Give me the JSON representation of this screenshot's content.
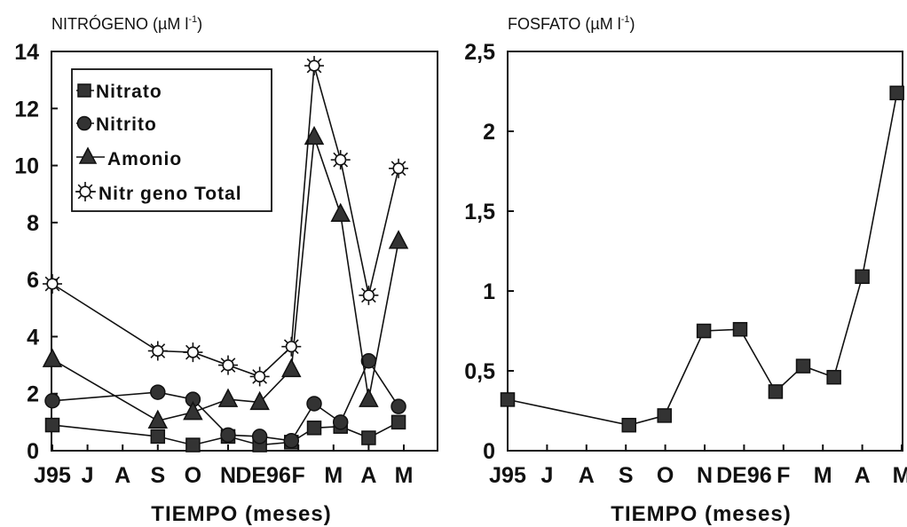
{
  "chart_data": [
    {
      "type": "line",
      "title": "NITRÓGENO (µM l",
      "title_sup": "-1",
      "title_end": ")",
      "xlabel": "TIEMPO (meses)",
      "ylabel": "",
      "x_tick_labels": [
        "J95",
        "J",
        "A",
        "S",
        "O",
        "N",
        "DE96",
        "F",
        "M",
        "A",
        "M"
      ],
      "y_tick_labels": [
        "0",
        "2",
        "4",
        "6",
        "8",
        "10",
        "12",
        "14"
      ],
      "ylim": [
        0,
        14
      ],
      "legend_position": "top-left",
      "series": [
        {
          "name": "Nitrato",
          "marker": "square",
          "x": [
            0,
            3,
            4,
            5,
            5.9,
            6.8,
            7.45,
            8.2,
            9,
            9.85
          ],
          "values": [
            0.9,
            0.5,
            0.2,
            0.5,
            0.2,
            0.3,
            0.8,
            0.85,
            0.45,
            1.0
          ]
        },
        {
          "name": "Nitrito",
          "marker": "circle",
          "x": [
            0,
            3,
            4,
            5,
            5.9,
            6.8,
            7.45,
            8.2,
            9,
            9.85
          ],
          "values": [
            1.75,
            2.05,
            1.8,
            0.55,
            0.5,
            0.35,
            1.65,
            1.0,
            3.15,
            1.55
          ]
        },
        {
          "name": "Amonio",
          "marker": "triangle",
          "x": [
            0,
            3,
            4,
            5,
            5.9,
            6.8,
            7.45,
            8.2,
            9,
            9.85
          ],
          "values": [
            3.2,
            1.05,
            1.35,
            1.8,
            1.7,
            2.85,
            11.0,
            8.3,
            1.8,
            7.35
          ]
        },
        {
          "name": "Nitr geno Total",
          "marker": "sun",
          "x": [
            0,
            3,
            4,
            5,
            5.9,
            6.8,
            7.45,
            8.2,
            9,
            9.85
          ],
          "values": [
            5.85,
            3.5,
            3.45,
            3.0,
            2.6,
            3.65,
            13.5,
            10.2,
            5.45,
            9.9
          ]
        }
      ]
    },
    {
      "type": "line",
      "title": "FOSFATO (µM l",
      "title_sup": "-1",
      "title_end": ")",
      "xlabel": "TIEMPO (meses)",
      "ylabel": "",
      "x_tick_labels": [
        "J95",
        "J",
        "A",
        "S",
        "O",
        "N",
        "DE96",
        "F",
        "M",
        "A",
        "M"
      ],
      "y_tick_labels": [
        "0",
        "0,5",
        "1",
        "1,5",
        "2",
        "2,5"
      ],
      "ylim": [
        0,
        2.5
      ],
      "series": [
        {
          "name": "",
          "marker": "square",
          "x": [
            0,
            3.08,
            3.98,
            4.98,
            5.9,
            6.8,
            7.5,
            8.28,
            9.0,
            9.88
          ],
          "values": [
            0.32,
            0.16,
            0.22,
            0.75,
            0.76,
            0.37,
            0.53,
            0.46,
            1.09,
            2.24
          ]
        }
      ]
    }
  ]
}
